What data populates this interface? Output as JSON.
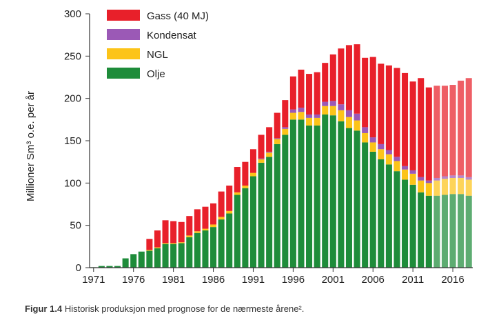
{
  "chart_data": {
    "type": "bar",
    "stacked": true,
    "title": "",
    "ylabel": "Millioner Sm³ o.e. per år",
    "xlabel": "",
    "ylim": [
      0,
      300
    ],
    "yticks": [
      0,
      50,
      100,
      150,
      200,
      250,
      300
    ],
    "xticks": [
      "1971",
      "1976",
      "1981",
      "1986",
      "1991",
      "1996",
      "2001",
      "2006",
      "2011",
      "2016"
    ],
    "categories": [
      "1971",
      "1972",
      "1973",
      "1974",
      "1975",
      "1976",
      "1977",
      "1978",
      "1979",
      "1980",
      "1981",
      "1982",
      "1983",
      "1984",
      "1985",
      "1986",
      "1987",
      "1988",
      "1989",
      "1990",
      "1991",
      "1992",
      "1993",
      "1994",
      "1995",
      "1996",
      "1997",
      "1998",
      "1999",
      "2000",
      "2001",
      "2002",
      "2003",
      "2004",
      "2005",
      "2006",
      "2007",
      "2008",
      "2009",
      "2010",
      "2011",
      "2012",
      "2013",
      "2014",
      "2015",
      "2016",
      "2017",
      "2018"
    ],
    "forecast_from": "2014",
    "legend_position": "top-left",
    "series": [
      {
        "name": "Olje",
        "color": "#1e8c3a",
        "values": [
          0.5,
          2,
          2,
          2,
          11,
          16,
          19,
          20,
          23,
          28,
          28,
          29,
          36,
          41,
          44,
          48,
          57,
          64,
          86,
          94,
          108,
          124,
          131,
          146,
          157,
          175,
          175,
          168,
          168,
          181,
          180,
          173,
          165,
          162,
          148,
          137,
          128,
          122,
          114,
          104,
          98,
          89,
          85,
          85,
          86,
          87,
          87,
          85
        ]
      },
      {
        "name": "NGL",
        "color": "#fcc419",
        "values": [
          0,
          0,
          0,
          0,
          0,
          0,
          0,
          1,
          1,
          1,
          1,
          1,
          2,
          2,
          2,
          3,
          3,
          3,
          3,
          3,
          4,
          4,
          5,
          6,
          7,
          8,
          9,
          9,
          9,
          10,
          11,
          13,
          13,
          12,
          11,
          11,
          12,
          12,
          12,
          12,
          13,
          14,
          15,
          18,
          19,
          19,
          19,
          19
        ]
      },
      {
        "name": "Kondensat",
        "color": "#9b59b6",
        "values": [
          0,
          0,
          0,
          0,
          0,
          0,
          0,
          0,
          0,
          0,
          0,
          0,
          0,
          0,
          0,
          0,
          0,
          0,
          0,
          0,
          0,
          1,
          1,
          1,
          2,
          4,
          5,
          4,
          4,
          5,
          6,
          7,
          8,
          8,
          7,
          6,
          6,
          5,
          5,
          4,
          4,
          4,
          3,
          3,
          3,
          3,
          3,
          3
        ]
      },
      {
        "name": "Gass (40 MJ)",
        "color": "#e8202a",
        "values": [
          0,
          0,
          0,
          0,
          0,
          0,
          0,
          13,
          20,
          27,
          26,
          24,
          23,
          26,
          26,
          25,
          30,
          30,
          30,
          28,
          28,
          28,
          29,
          30,
          32,
          39,
          45,
          48,
          50,
          46,
          55,
          66,
          77,
          82,
          82,
          95,
          95,
          100,
          105,
          110,
          105,
          117,
          110,
          109,
          107,
          107,
          112,
          117
        ]
      }
    ]
  },
  "caption": {
    "label": "Figur 1.4",
    "text": "Historisk produksjon med prognose for de nærmeste årene²."
  }
}
